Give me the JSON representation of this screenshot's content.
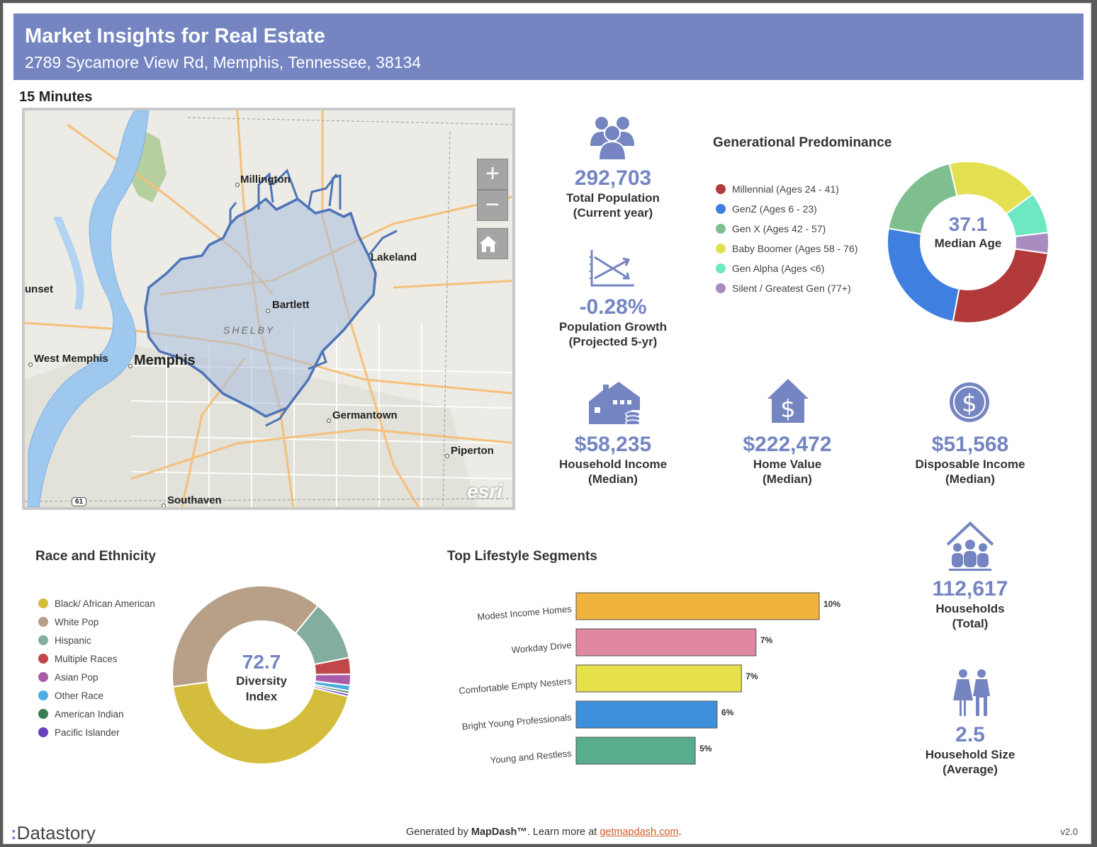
{
  "header": {
    "title": "Market Insights for Real Estate",
    "address": "2789 Sycamore View Rd, Memphis, Tennessee, 38134"
  },
  "drive_time": "15 Minutes",
  "map": {
    "labels": {
      "millington": "Millington",
      "lakeland": "Lakeland",
      "sunset": "unset",
      "bartlett": "Bartlett",
      "shelby": "SHELBY",
      "west_memphis": "West Memphis",
      "memphis": "Memphis",
      "germantown": "Germantown",
      "piperton": "Piperton",
      "southaven": "Southaven",
      "route": "61"
    },
    "zoom_in": "+",
    "zoom_out": "−",
    "attribution": "esri"
  },
  "stats": {
    "population": {
      "value": "292,703",
      "label1": "Total Population",
      "label2": "(Current year)"
    },
    "growth": {
      "value": "-0.28%",
      "label1": "Population Growth",
      "label2": "(Projected 5-yr)"
    },
    "income": {
      "value": "$58,235",
      "label1": "Household Income",
      "label2": "(Median)"
    },
    "home_value": {
      "value": "$222,472",
      "label1": "Home Value",
      "label2": "(Median)"
    },
    "disposable": {
      "value": "$51,568",
      "label1": "Disposable Income",
      "label2": "(Median)"
    },
    "households": {
      "value": "112,617",
      "label1": "Households",
      "label2": "(Total)"
    },
    "hh_size": {
      "value": "2.5",
      "label1": "Household Size",
      "label2": "(Average)"
    }
  },
  "generational": {
    "title": "Generational Predominance",
    "center_value": "37.1",
    "center_label": "Median Age",
    "legend": [
      {
        "label": "Millennial (Ages 24 - 41)",
        "color": "#b33a3a"
      },
      {
        "label": "GenZ (Ages 6 - 23)",
        "color": "#3f7fe0"
      },
      {
        "label": "Gen X (Ages 42 - 57)",
        "color": "#7fbf8f"
      },
      {
        "label": "Baby Boomer (Ages 58 - 76)",
        "color": "#e3e052"
      },
      {
        "label": "Gen Alpha (Ages <6)",
        "color": "#6ee7c3"
      },
      {
        "label": "Silent / Greatest Gen (77+)",
        "color": "#a98bc0"
      }
    ]
  },
  "race": {
    "title": "Race and Ethnicity",
    "center_value": "72.7",
    "center_label1": "Diversity",
    "center_label2": "Index",
    "legend": [
      {
        "label": "Black/ African American",
        "color": "#d4bd3c"
      },
      {
        "label": "White Pop",
        "color": "#b8a088"
      },
      {
        "label": "Hispanic",
        "color": "#83ad9e"
      },
      {
        "label": "Multiple Races",
        "color": "#c0474a"
      },
      {
        "label": "Asian Pop",
        "color": "#a95da8"
      },
      {
        "label": "Other Race",
        "color": "#4aaee0"
      },
      {
        "label": "American Indian",
        "color": "#3a7d55"
      },
      {
        "label": "Pacific Islander",
        "color": "#6a3fc0"
      }
    ]
  },
  "segments": {
    "title": "Top Lifestyle Segments"
  },
  "chart_data": [
    {
      "type": "pie",
      "title": "Generational Predominance",
      "categories": [
        "Millennial (Ages 24 - 41)",
        "GenZ (Ages 6 - 23)",
        "Gen X (Ages 42 - 57)",
        "Baby Boomer (Ages 58 - 76)",
        "Gen Alpha (Ages <6)",
        "Silent / Greatest Gen (77+)"
      ],
      "values": [
        25,
        24,
        18,
        18,
        8,
        4
      ],
      "colors": [
        "#b33a3a",
        "#3f7fe0",
        "#7fbf8f",
        "#e3e052",
        "#6ee7c3",
        "#a98bc0"
      ]
    },
    {
      "type": "pie",
      "title": "Race and Ethnicity",
      "categories": [
        "Black/ African American",
        "White Pop",
        "Hispanic",
        "Multiple Races",
        "Asian Pop",
        "Other Race",
        "American Indian",
        "Pacific Islander"
      ],
      "values": [
        44,
        38,
        11,
        3,
        2,
        1,
        0.5,
        0.5
      ],
      "colors": [
        "#d4bd3c",
        "#b8a088",
        "#83ad9e",
        "#c0474a",
        "#a95da8",
        "#4aaee0",
        "#3a7d55",
        "#6a3fc0"
      ]
    },
    {
      "type": "bar",
      "title": "Top Lifestyle Segments",
      "categories": [
        "Modest Income Homes",
        "Workday Drive",
        "Comfortable Empty Nesters",
        "Bright Young Professionals",
        "Young and Restless"
      ],
      "values": [
        10,
        7.4,
        6.8,
        5.8,
        4.9
      ],
      "labels": [
        "10%",
        "7%",
        "7%",
        "6%",
        "5%"
      ],
      "colors": [
        "#f0b43c",
        "#e088a0",
        "#e6e04a",
        "#3f90dc",
        "#58ad8c"
      ],
      "xlim": [
        0,
        10
      ]
    }
  ],
  "footer": {
    "brand": "Datastory",
    "generated_prefix": "Generated by ",
    "generated_brand": "MapDash™",
    "learn_more": ".  Learn more at ",
    "link": "getmapdash.com",
    "link_suffix": ".",
    "version": "v2.0"
  }
}
